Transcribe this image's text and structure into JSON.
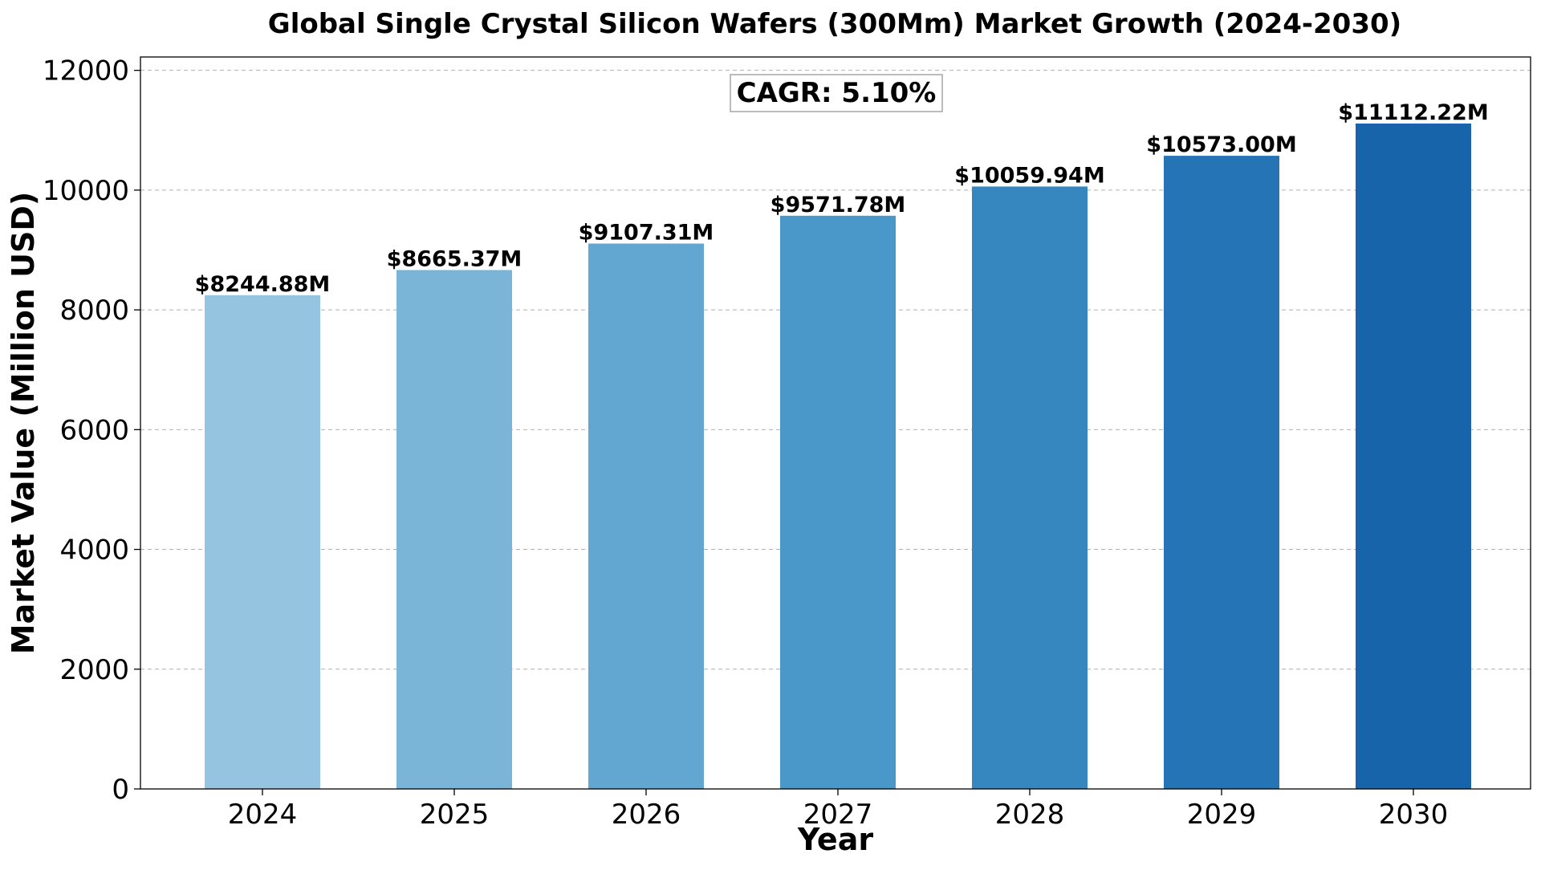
{
  "chart_data": {
    "type": "bar",
    "title": "Global Single Crystal Silicon Wafers (300Mm) Market Growth (2024-2030)",
    "xlabel": "Year",
    "ylabel": "Market Value (Million USD)",
    "categories": [
      "2024",
      "2025",
      "2026",
      "2027",
      "2028",
      "2029",
      "2030"
    ],
    "values": [
      8244.88,
      8665.37,
      9107.31,
      9571.78,
      10059.94,
      10573.0,
      11112.22
    ],
    "value_labels": [
      "$8244.88M",
      "$8665.37M",
      "$9107.31M",
      "$9571.78M",
      "$10059.94M",
      "$10573.00M",
      "$11112.22M"
    ],
    "ylim": [
      0,
      12223
    ],
    "yticks": [
      0,
      2000,
      4000,
      6000,
      8000,
      10000,
      12000
    ],
    "ytick_labels": [
      "0",
      "2000",
      "4000",
      "6000",
      "8000",
      "10000",
      "12000"
    ],
    "grid": "y-dashed",
    "annotation": "CAGR: 5.10%",
    "colors": [
      "#94c4df",
      "#7ab5d8",
      "#62a7d2",
      "#4a98c9",
      "#3686c0",
      "#2474b6",
      "#1864aa"
    ]
  }
}
